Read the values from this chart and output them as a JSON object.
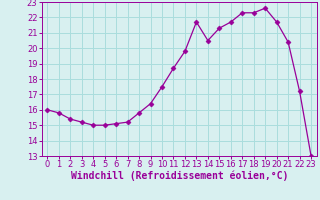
{
  "x": [
    0,
    1,
    2,
    3,
    4,
    5,
    6,
    7,
    8,
    9,
    10,
    11,
    12,
    13,
    14,
    15,
    16,
    17,
    18,
    19,
    20,
    21,
    22,
    23
  ],
  "y": [
    16.0,
    15.8,
    15.4,
    15.2,
    15.0,
    15.0,
    15.1,
    15.2,
    15.8,
    16.4,
    17.5,
    18.7,
    19.8,
    21.7,
    20.5,
    21.3,
    21.7,
    22.3,
    22.3,
    22.6,
    21.7,
    20.4,
    17.2,
    13.0
  ],
  "line_color": "#990099",
  "marker": "D",
  "marker_size": 2.5,
  "bg_color": "#d8f0f0",
  "grid_color": "#aadddd",
  "xlabel": "Windchill (Refroidissement éolien,°C)",
  "xlabel_color": "#990099",
  "xlim": [
    -0.5,
    23.5
  ],
  "ylim": [
    13,
    23
  ],
  "yticks": [
    13,
    14,
    15,
    16,
    17,
    18,
    19,
    20,
    21,
    22,
    23
  ],
  "xticks": [
    0,
    1,
    2,
    3,
    4,
    5,
    6,
    7,
    8,
    9,
    10,
    11,
    12,
    13,
    14,
    15,
    16,
    17,
    18,
    19,
    20,
    21,
    22,
    23
  ],
  "tick_label_size": 6.0,
  "xlabel_size": 7.0
}
